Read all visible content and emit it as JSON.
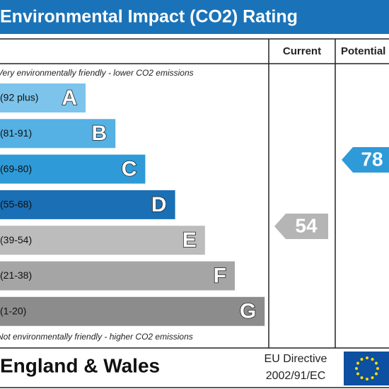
{
  "header": {
    "title": "Environmental Impact (CO2) Rating"
  },
  "columns": {
    "current": "Current",
    "potential": "Potential"
  },
  "top_note": "Very environmentally friendly - lower CO2 emissions",
  "bottom_note": "Not environmentally friendly - higher CO2 emissions",
  "bands": [
    {
      "range": "(92 plus)",
      "letter": "A"
    },
    {
      "range": "(81-91)",
      "letter": "B"
    },
    {
      "range": "(69-80)",
      "letter": "C"
    },
    {
      "range": "(55-68)",
      "letter": "D"
    },
    {
      "range": "(39-54)",
      "letter": "E"
    },
    {
      "range": "(21-38)",
      "letter": "F"
    },
    {
      "range": "(1-20)",
      "letter": "G"
    }
  ],
  "current": 54,
  "potential": 78,
  "footer": {
    "region": "England & Wales",
    "directive_line1": "EU Directive",
    "directive_line2": "2002/91/EC"
  }
}
